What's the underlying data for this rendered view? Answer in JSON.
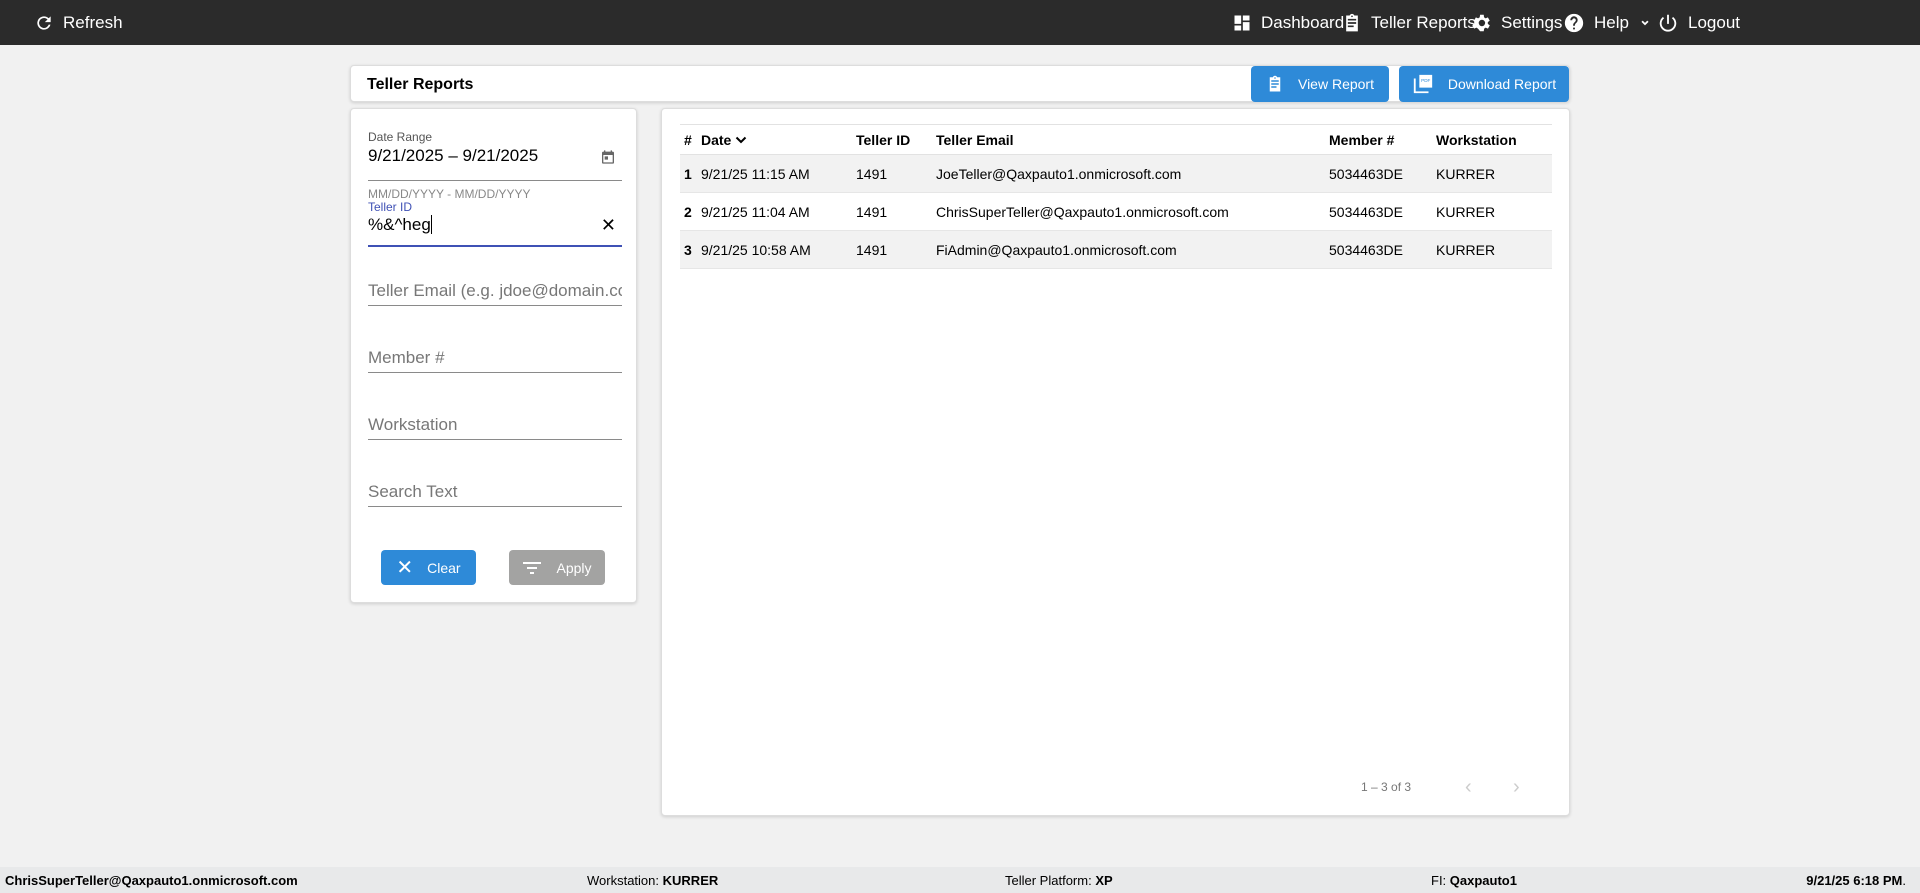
{
  "topbar": {
    "refresh": "Refresh",
    "nav": [
      {
        "label": "Dashboard",
        "icon": "dashboard-icon"
      },
      {
        "label": "Teller Reports",
        "icon": "clipboard-icon"
      },
      {
        "label": "Settings",
        "icon": "gear-icon"
      },
      {
        "label": "Help",
        "icon": "help-icon"
      },
      {
        "label": "Logout",
        "icon": "power-icon"
      }
    ]
  },
  "header": {
    "title": "Teller Reports",
    "view_report": "View Report",
    "download_report": "Download Report"
  },
  "filters": {
    "date_range_label": "Date Range",
    "date_range_value": "9/21/2025 – 9/21/2025",
    "date_hint": "MM/DD/YYYY - MM/DD/YYYY",
    "teller_id_label": "Teller ID",
    "teller_id_value": "%&^heg",
    "teller_email_placeholder": "Teller Email (e.g. jdoe@domain.com)",
    "member_placeholder": "Member #",
    "workstation_placeholder": "Workstation",
    "search_placeholder": "Search Text",
    "clear": "Clear",
    "apply": "Apply"
  },
  "table": {
    "columns": [
      "#",
      "Date",
      "Teller ID",
      "Teller Email",
      "Member #",
      "Workstation"
    ],
    "rows": [
      [
        "1",
        "9/21/25 11:15 AM",
        "1491",
        "JoeTeller@Qaxpauto1.onmicrosoft.com",
        "5034463DE",
        "KURRER"
      ],
      [
        "2",
        "9/21/25 11:04 AM",
        "1491",
        "ChrisSuperTeller@Qaxpauto1.onmicrosoft.com",
        "5034463DE",
        "KURRER"
      ],
      [
        "3",
        "9/21/25 10:58 AM",
        "1491",
        "FiAdmin@Qaxpauto1.onmicrosoft.com",
        "5034463DE",
        "KURRER"
      ]
    ],
    "pagination": "1 – 3 of 3"
  },
  "footer": {
    "user": "ChrisSuperTeller@Qaxpauto1.onmicrosoft.com",
    "workstation_label": "Workstation:",
    "workstation": "KURRER",
    "platform_label": "Teller Platform:",
    "platform": "XP",
    "fi_label": "FI:",
    "fi": "Qaxpauto1",
    "datetime": "9/21/25 6:18 PM",
    "datetime_suffix": "."
  },
  "colors": {
    "accent": "#2e8ad8",
    "topbar": "#2b2b2b",
    "focus": "#3f51b5"
  }
}
